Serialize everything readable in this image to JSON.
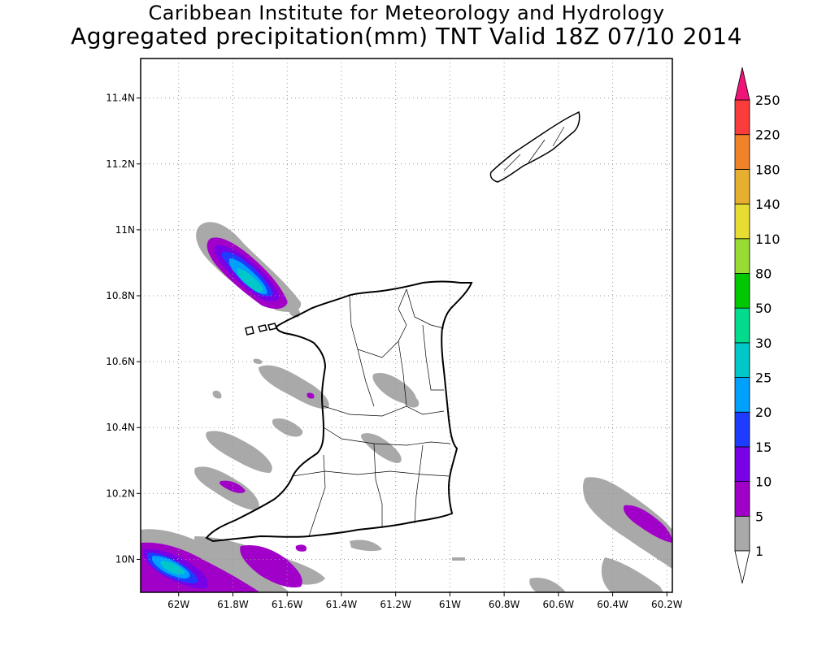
{
  "title_line1": "Caribbean Institute for Meteorology and Hydrology",
  "title_line2": "Aggregated precipitation(mm) TNT Valid 18Z 07/10 2014",
  "axes": {
    "lat_labels": [
      "11.4N",
      "11.2N",
      "11N",
      "10.8N",
      "10.6N",
      "10.4N",
      "10.2N",
      "10N"
    ],
    "lat_values": [
      11.4,
      11.2,
      11.0,
      10.8,
      10.6,
      10.4,
      10.2,
      10.0
    ],
    "lon_labels": [
      "62W",
      "61.8W",
      "61.6W",
      "61.4W",
      "61.2W",
      "61W",
      "60.8W",
      "60.6W",
      "60.4W",
      "60.2W"
    ],
    "lon_values": [
      -62.0,
      -61.8,
      -61.6,
      -61.4,
      -61.2,
      -61.0,
      -60.8,
      -60.6,
      -60.4,
      -60.2
    ],
    "lon_range": [
      -62.14,
      -60.18
    ],
    "lat_range": [
      9.9,
      11.52
    ],
    "grid": "dotted"
  },
  "colorbar": {
    "labels": [
      "1",
      "5",
      "10",
      "15",
      "20",
      "25",
      "30",
      "50",
      "80",
      "110",
      "140",
      "180",
      "220",
      "250"
    ],
    "colors": [
      "#ffffff",
      "#a9a9a9",
      "#a100c8",
      "#7800e6",
      "#1e3cff",
      "#00a0ff",
      "#00c8c8",
      "#00dc8c",
      "#00c800",
      "#96dc32",
      "#e6dc32",
      "#e6af2d",
      "#f08228",
      "#fa3c3c",
      "#ee1478"
    ]
  },
  "precip_blobs": [
    {
      "name": "nw-blob",
      "levels": [
        {
          "c": "#a9a9a9"
        },
        {
          "c": "#a100c8"
        },
        {
          "c": "#7800e6"
        },
        {
          "c": "#1e3cff"
        },
        {
          "c": "#00a0ff"
        },
        {
          "c": "#00c8c8"
        }
      ]
    },
    {
      "name": "sw-blob",
      "levels": [
        {
          "c": "#a9a9a9"
        },
        {
          "c": "#a100c8"
        },
        {
          "c": "#1e3cff"
        },
        {
          "c": "#00a0ff"
        },
        {
          "c": "#00c8c8"
        }
      ]
    }
  ]
}
